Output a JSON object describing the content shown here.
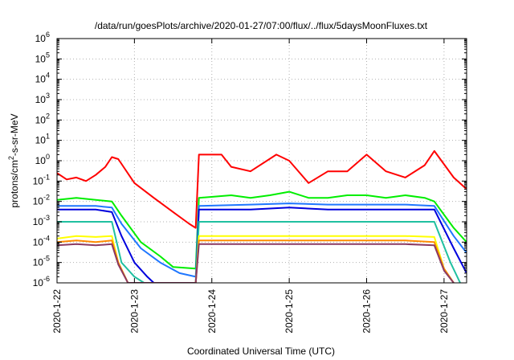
{
  "chart_data": {
    "type": "line",
    "title": "/data/run/goesPlots/archive/2020-01-27/07:00/flux/../flux/5daysMoonFluxes.txt",
    "xlabel": "Coordinated Universal Time (UTC)",
    "ylabel": "protons/cm²-s-sr-MeV",
    "ylabel_parts": {
      "pre": "protons/cm",
      "sup": "2",
      "post": "-s-sr-MeV"
    },
    "yscale": "log",
    "ylim": [
      1e-06,
      1000000.0
    ],
    "y_ticks": [
      {
        "base": "10",
        "exp": "-6"
      },
      {
        "base": "10",
        "exp": "-5"
      },
      {
        "base": "10",
        "exp": "-4"
      },
      {
        "base": "10",
        "exp": "-3"
      },
      {
        "base": "10",
        "exp": "-2"
      },
      {
        "base": "10",
        "exp": "-1"
      },
      {
        "base": "10",
        "exp": "0"
      },
      {
        "base": "10",
        "exp": "1"
      },
      {
        "base": "10",
        "exp": "2"
      },
      {
        "base": "10",
        "exp": "3"
      },
      {
        "base": "10",
        "exp": "4"
      },
      {
        "base": "10",
        "exp": "5"
      },
      {
        "base": "10",
        "exp": "6"
      }
    ],
    "xlim": [
      "2020-01-22T00:00",
      "2020-01-27T07:00"
    ],
    "x_ticks": [
      "2020-1-22",
      "2020-1-23",
      "2020-1-24",
      "2020-1-25",
      "2020-1-26",
      "2020-1-27"
    ],
    "grid": true,
    "series": [
      {
        "color": "#ff0000",
        "x": [
          "2020-01-22T00:00",
          "2020-01-22T03:00",
          "2020-01-22T06:00",
          "2020-01-22T09:00",
          "2020-01-22T12:00",
          "2020-01-22T15:00",
          "2020-01-22T17:00",
          "2020-01-22T19:00",
          "2020-01-23T00:00",
          "2020-01-23T06:00",
          "2020-01-23T12:00",
          "2020-01-23T17:00",
          "2020-01-23T19:00",
          "2020-01-23T20:00",
          "2020-01-24T03:00",
          "2020-01-24T06:00",
          "2020-01-24T12:00",
          "2020-01-24T20:00",
          "2020-01-25T00:00",
          "2020-01-25T06:00",
          "2020-01-25T12:00",
          "2020-01-25T18:00",
          "2020-01-26T00:00",
          "2020-01-26T06:00",
          "2020-01-26T12:00",
          "2020-01-26T18:00",
          "2020-01-26T21:00",
          "2020-01-27T03:00",
          "2020-01-27T07:00"
        ],
        "y": [
          0.25,
          0.12,
          0.15,
          0.1,
          0.2,
          0.5,
          1.5,
          1.2,
          0.08,
          0.015,
          0.003,
          0.0008,
          0.0005,
          2.0,
          2.0,
          0.5,
          0.3,
          2.0,
          1.0,
          0.08,
          0.3,
          0.3,
          2.0,
          0.3,
          0.15,
          0.6,
          3.0,
          0.15,
          0.04
        ]
      },
      {
        "color": "#00ee00",
        "x": [
          "2020-01-22T00:00",
          "2020-01-22T06:00",
          "2020-01-22T12:00",
          "2020-01-22T17:00",
          "2020-01-22T20:00",
          "2020-01-23T02:00",
          "2020-01-23T08:00",
          "2020-01-23T12:00",
          "2020-01-23T19:00",
          "2020-01-23T20:00",
          "2020-01-24T06:00",
          "2020-01-24T12:00",
          "2020-01-24T18:00",
          "2020-01-25T00:00",
          "2020-01-25T06:00",
          "2020-01-25T12:00",
          "2020-01-25T18:00",
          "2020-01-26T00:00",
          "2020-01-26T06:00",
          "2020-01-26T12:00",
          "2020-01-26T18:00",
          "2020-01-26T21:00",
          "2020-01-27T03:00",
          "2020-01-27T07:00"
        ],
        "y": [
          0.012,
          0.015,
          0.012,
          0.01,
          0.002,
          0.0001,
          2e-05,
          6e-06,
          5e-06,
          0.015,
          0.02,
          0.015,
          0.02,
          0.03,
          0.015,
          0.015,
          0.02,
          0.02,
          0.015,
          0.02,
          0.015,
          0.01,
          0.0005,
          0.0001
        ]
      },
      {
        "color": "#1f77ff",
        "x": [
          "2020-01-22T00:00",
          "2020-01-22T12:00",
          "2020-01-22T17:00",
          "2020-01-22T20:00",
          "2020-01-23T02:00",
          "2020-01-23T08:00",
          "2020-01-23T14:00",
          "2020-01-23T19:00",
          "2020-01-23T20:00",
          "2020-01-24T12:00",
          "2020-01-25T00:00",
          "2020-01-25T12:00",
          "2020-01-26T00:00",
          "2020-01-26T12:00",
          "2020-01-26T21:00",
          "2020-01-27T03:00",
          "2020-01-27T07:00"
        ],
        "y": [
          0.006,
          0.006,
          0.005,
          0.0008,
          5e-05,
          1e-05,
          3e-06,
          2e-06,
          0.006,
          0.007,
          0.008,
          0.007,
          0.007,
          0.007,
          0.006,
          0.0002,
          3e-05
        ]
      },
      {
        "color": "#0000dd",
        "x": [
          "2020-01-22T00:00",
          "2020-01-22T12:00",
          "2020-01-22T17:00",
          "2020-01-22T20:00",
          "2020-01-23T00:00",
          "2020-01-23T04:00",
          "2020-01-23T06:00",
          "2020-01-23T19:00",
          "2020-01-23T20:00",
          "2020-01-24T12:00",
          "2020-01-25T00:00",
          "2020-01-25T12:00",
          "2020-01-26T00:00",
          "2020-01-26T12:00",
          "2020-01-26T21:00",
          "2020-01-27T03:00",
          "2020-01-27T07:00"
        ],
        "y": [
          0.004,
          0.004,
          0.003,
          0.0002,
          1e-05,
          2e-06,
          1e-06,
          1e-06,
          0.004,
          0.004,
          0.005,
          0.004,
          0.004,
          0.004,
          0.004,
          5e-05,
          3e-06
        ]
      },
      {
        "color": "#20c0a0",
        "x": [
          "2020-01-22T00:00",
          "2020-01-22T12:00",
          "2020-01-22T17:00",
          "2020-01-22T20:00",
          "2020-01-23T00:00",
          "2020-01-23T03:00",
          "2020-01-23T19:00",
          "2020-01-23T20:00",
          "2020-01-24T12:00",
          "2020-01-25T00:00",
          "2020-01-25T12:00",
          "2020-01-26T00:00",
          "2020-01-26T12:00",
          "2020-01-26T21:00",
          "2020-01-27T02:00",
          "2020-01-27T05:00"
        ],
        "y": [
          0.001,
          0.001,
          0.001,
          1e-05,
          2e-06,
          1e-06,
          1e-06,
          0.001,
          0.001,
          0.001,
          0.001,
          0.001,
          0.001,
          0.001,
          1e-05,
          1e-06
        ]
      },
      {
        "color": "#ffff00",
        "x": [
          "2020-01-22T00:00",
          "2020-01-22T06:00",
          "2020-01-22T12:00",
          "2020-01-22T17:00",
          "2020-01-22T19:00",
          "2020-01-22T22:00",
          "2020-01-23T19:00",
          "2020-01-23T20:00",
          "2020-01-24T12:00",
          "2020-01-25T00:00",
          "2020-01-25T12:00",
          "2020-01-26T00:00",
          "2020-01-26T12:00",
          "2020-01-26T21:00",
          "2020-01-27T00:00",
          "2020-01-27T03:00"
        ],
        "y": [
          0.00015,
          0.0002,
          0.00018,
          0.0002,
          1e-05,
          1e-06,
          1e-06,
          0.0002,
          0.0002,
          0.0002,
          0.0002,
          0.0002,
          0.0002,
          0.00018,
          5e-06,
          1e-06
        ]
      },
      {
        "color": "#ff8c00",
        "x": [
          "2020-01-22T00:00",
          "2020-01-22T06:00",
          "2020-01-22T12:00",
          "2020-01-22T17:00",
          "2020-01-22T19:00",
          "2020-01-22T22:00",
          "2020-01-23T19:00",
          "2020-01-23T20:00",
          "2020-01-24T12:00",
          "2020-01-25T00:00",
          "2020-01-25T12:00",
          "2020-01-26T00:00",
          "2020-01-26T12:00",
          "2020-01-26T21:00",
          "2020-01-27T00:00",
          "2020-01-27T03:00"
        ],
        "y": [
          0.0001,
          0.00012,
          0.0001,
          0.00012,
          1e-05,
          1e-06,
          1e-06,
          0.00012,
          0.00012,
          0.00012,
          0.00012,
          0.00012,
          0.00012,
          0.0001,
          5e-06,
          1e-06
        ]
      },
      {
        "color": "#8b3a62",
        "x": [
          "2020-01-22T00:00",
          "2020-01-22T06:00",
          "2020-01-22T12:00",
          "2020-01-22T17:00",
          "2020-01-22T19:00",
          "2020-01-22T22:00",
          "2020-01-23T19:00",
          "2020-01-23T20:00",
          "2020-01-24T12:00",
          "2020-01-25T00:00",
          "2020-01-25T12:00",
          "2020-01-26T00:00",
          "2020-01-26T12:00",
          "2020-01-26T21:00",
          "2020-01-27T00:00",
          "2020-01-27T03:00"
        ],
        "y": [
          7e-05,
          8e-05,
          7e-05,
          8e-05,
          8e-06,
          1e-06,
          1e-06,
          8e-05,
          8e-05,
          8e-05,
          8e-05,
          8e-05,
          8e-05,
          7e-05,
          4e-06,
          1e-06
        ]
      }
    ]
  }
}
